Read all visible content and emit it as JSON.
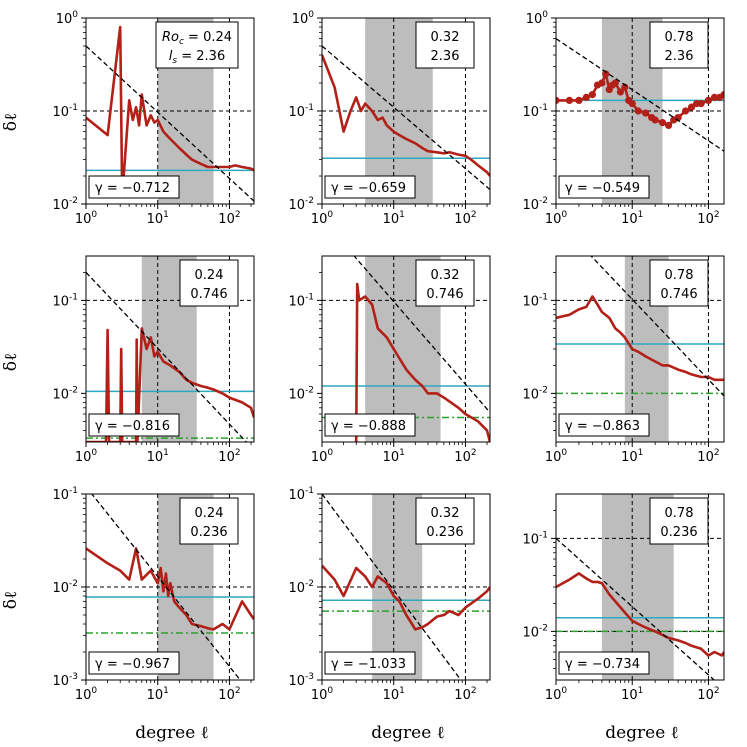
{
  "figure": {
    "ylabel": "δℓ",
    "xlabel": "degree ℓ",
    "roc_symbol": "Roc",
    "ls_symbol": "ls",
    "gamma_symbol": "γ"
  },
  "colors": {
    "spectrum": "#b22018",
    "fit": "#000000",
    "cyan": "#2ea8bf",
    "green": "#2ca02c",
    "band": "#bdbdbd"
  },
  "chart_data": [
    {
      "type": "line",
      "row": 0,
      "col": 0,
      "roc": "0.24",
      "ls": "2.36",
      "gamma": "γ = −0.712",
      "full_label": true,
      "xlim": [
        1,
        220
      ],
      "ylim": [
        0.01,
        1
      ],
      "band": [
        10,
        60
      ],
      "fit": {
        "a": 0.5,
        "slope": -0.712
      },
      "cyan": 0.023,
      "green": null,
      "dots": false,
      "x": [
        1,
        2,
        3,
        3.2,
        4,
        4.5,
        5,
        5.5,
        6,
        6.5,
        7,
        8,
        9,
        10,
        12,
        15,
        20,
        25,
        30,
        40,
        50,
        60,
        80,
        100,
        120,
        150,
        200,
        220
      ],
      "y": [
        0.085,
        0.055,
        0.8,
        0.012,
        0.13,
        0.08,
        0.11,
        0.07,
        0.15,
        0.1,
        0.07,
        0.09,
        0.075,
        0.08,
        0.06,
        0.05,
        0.04,
        0.034,
        0.03,
        0.027,
        0.025,
        0.025,
        0.025,
        0.025,
        0.026,
        0.025,
        0.024,
        0.023
      ]
    },
    {
      "type": "line",
      "row": 0,
      "col": 1,
      "roc": "0.32",
      "ls": "2.36",
      "gamma": "γ = −0.659",
      "full_label": false,
      "xlim": [
        1,
        220
      ],
      "ylim": [
        0.01,
        1
      ],
      "band": [
        4,
        35
      ],
      "fit": {
        "a": 0.5,
        "slope": -0.659
      },
      "cyan": 0.031,
      "green": null,
      "dots": false,
      "x": [
        1,
        1.5,
        2,
        2.5,
        3,
        3.5,
        4,
        5,
        6,
        7,
        8,
        10,
        12,
        15,
        20,
        25,
        30,
        40,
        50,
        60,
        80,
        100,
        120,
        150,
        200,
        220
      ],
      "y": [
        0.4,
        0.18,
        0.06,
        0.1,
        0.14,
        0.1,
        0.12,
        0.1,
        0.08,
        0.085,
        0.07,
        0.06,
        0.055,
        0.05,
        0.045,
        0.04,
        0.037,
        0.036,
        0.035,
        0.036,
        0.034,
        0.033,
        0.03,
        0.026,
        0.022,
        0.02
      ]
    },
    {
      "type": "scatter",
      "row": 0,
      "col": 2,
      "roc": "0.78",
      "ls": "2.36",
      "gamma": "γ = −0.549",
      "full_label": false,
      "xlim": [
        1,
        160
      ],
      "ylim": [
        0.01,
        1
      ],
      "band": [
        4,
        25
      ],
      "fit": {
        "a": 0.6,
        "slope": -0.549
      },
      "cyan": 0.13,
      "green": null,
      "dots": true,
      "x": [
        1,
        1.5,
        2,
        2.5,
        3,
        3.5,
        4,
        4.5,
        5,
        5.5,
        6,
        7,
        8,
        9,
        10,
        12,
        15,
        18,
        20,
        25,
        30,
        35,
        40,
        50,
        60,
        70,
        80,
        100,
        120,
        140,
        160
      ],
      "y": [
        0.13,
        0.13,
        0.13,
        0.14,
        0.15,
        0.19,
        0.2,
        0.25,
        0.17,
        0.19,
        0.2,
        0.16,
        0.18,
        0.13,
        0.12,
        0.1,
        0.095,
        0.085,
        0.08,
        0.075,
        0.07,
        0.08,
        0.085,
        0.1,
        0.11,
        0.12,
        0.12,
        0.13,
        0.14,
        0.14,
        0.15
      ]
    },
    {
      "type": "line",
      "row": 1,
      "col": 0,
      "roc": "0.24",
      "ls": "0.746",
      "gamma": "γ = −0.816",
      "full_label": false,
      "xlim": [
        1,
        220
      ],
      "ylim": [
        0.003,
        0.3
      ],
      "band": [
        6,
        35
      ],
      "fit": {
        "a": 0.2,
        "slope": -0.816
      },
      "cyan": 0.0105,
      "green": 0.0033,
      "dots": false,
      "x": [
        1,
        1.9,
        2,
        2.1,
        3,
        3.1,
        3.2,
        4,
        5,
        5.1,
        5.2,
        6,
        7,
        8,
        9,
        10,
        12,
        15,
        20,
        25,
        30,
        40,
        50,
        60,
        80,
        100,
        150,
        200,
        220
      ],
      "y": [
        0.003,
        0.003,
        0.048,
        0.003,
        0.003,
        0.03,
        0.003,
        0.003,
        0.003,
        0.038,
        0.003,
        0.05,
        0.03,
        0.04,
        0.025,
        0.028,
        0.022,
        0.02,
        0.017,
        0.014,
        0.013,
        0.012,
        0.0115,
        0.011,
        0.01,
        0.009,
        0.008,
        0.007,
        0.0055
      ]
    },
    {
      "type": "line",
      "row": 1,
      "col": 1,
      "roc": "0.32",
      "ls": "0.746",
      "gamma": "γ = −0.888",
      "full_label": false,
      "xlim": [
        1,
        220
      ],
      "ylim": [
        0.003,
        0.3
      ],
      "band": [
        4,
        45
      ],
      "fit": {
        "a": 0.75,
        "slope": -0.888
      },
      "cyan": 0.012,
      "green": 0.0055,
      "dots": false,
      "x": [
        3,
        3.1,
        3.3,
        4,
        5,
        6,
        8,
        10,
        15,
        20,
        25,
        30,
        40,
        50,
        80,
        100,
        150,
        200,
        220
      ],
      "y": [
        0.003,
        0.15,
        0.1,
        0.11,
        0.09,
        0.05,
        0.04,
        0.03,
        0.018,
        0.014,
        0.012,
        0.01,
        0.01,
        0.009,
        0.007,
        0.006,
        0.005,
        0.004,
        0.003
      ]
    },
    {
      "type": "line",
      "row": 1,
      "col": 2,
      "roc": "0.78",
      "ls": "0.746",
      "gamma": "γ = −0.863",
      "full_label": false,
      "xlim": [
        1,
        160
      ],
      "ylim": [
        0.003,
        0.3
      ],
      "band": [
        8,
        30
      ],
      "fit": {
        "a": 0.75,
        "slope": -0.863
      },
      "cyan": 0.034,
      "green": 0.01,
      "dots": false,
      "x": [
        1,
        1.5,
        2,
        2.5,
        3,
        3.5,
        4,
        5,
        6,
        7,
        8,
        10,
        12,
        15,
        20,
        25,
        30,
        40,
        50,
        60,
        80,
        100,
        120,
        160
      ],
      "y": [
        0.065,
        0.07,
        0.08,
        0.085,
        0.11,
        0.09,
        0.075,
        0.065,
        0.05,
        0.045,
        0.04,
        0.03,
        0.028,
        0.025,
        0.022,
        0.02,
        0.02,
        0.018,
        0.017,
        0.016,
        0.015,
        0.015,
        0.014,
        0.014
      ]
    },
    {
      "type": "line",
      "row": 2,
      "col": 0,
      "roc": "0.24",
      "ls": "0.236",
      "gamma": "γ = −0.967",
      "full_label": false,
      "xlim": [
        1,
        220
      ],
      "ylim": [
        0.001,
        0.1
      ],
      "band": [
        10,
        60
      ],
      "fit": {
        "a": 0.12,
        "slope": -0.967
      },
      "cyan": 0.0078,
      "green": 0.0032,
      "dots": false,
      "x": [
        1,
        2,
        3,
        4,
        5,
        6,
        8,
        10,
        11,
        12,
        13,
        14,
        15,
        17,
        20,
        25,
        30,
        40,
        50,
        60,
        80,
        100,
        150,
        200,
        220
      ],
      "y": [
        0.026,
        0.018,
        0.015,
        0.012,
        0.026,
        0.012,
        0.015,
        0.011,
        0.016,
        0.009,
        0.014,
        0.008,
        0.011,
        0.007,
        0.006,
        0.005,
        0.004,
        0.0038,
        0.0036,
        0.0035,
        0.004,
        0.0035,
        0.007,
        0.005,
        0.0045
      ]
    },
    {
      "type": "line",
      "row": 2,
      "col": 1,
      "roc": "0.32",
      "ls": "0.236",
      "gamma": "γ = −1.033",
      "full_label": false,
      "xlim": [
        1,
        220
      ],
      "ylim": [
        0.001,
        0.1
      ],
      "band": [
        5,
        25
      ],
      "fit": {
        "a": 0.1,
        "slope": -1.033
      },
      "cyan": 0.0072,
      "green": 0.0055,
      "dots": false,
      "x": [
        1,
        1.5,
        2,
        3,
        4,
        5,
        6,
        8,
        10,
        12,
        15,
        18,
        20,
        25,
        30,
        40,
        50,
        60,
        80,
        100,
        150,
        200,
        220
      ],
      "y": [
        0.017,
        0.012,
        0.008,
        0.016,
        0.013,
        0.01,
        0.013,
        0.011,
        0.008,
        0.007,
        0.005,
        0.004,
        0.0035,
        0.0037,
        0.004,
        0.0048,
        0.005,
        0.0055,
        0.005,
        0.006,
        0.0075,
        0.009,
        0.01
      ]
    },
    {
      "type": "line",
      "row": 2,
      "col": 2,
      "roc": "0.78",
      "ls": "0.236",
      "gamma": "γ = −0.734",
      "full_label": false,
      "xlim": [
        1,
        160
      ],
      "ylim": [
        0.003,
        0.3
      ],
      "band": [
        4,
        35
      ],
      "fit": {
        "a": 0.1,
        "slope": -0.734
      },
      "cyan": 0.014,
      "green": 0.01,
      "dots": false,
      "x": [
        1,
        1.5,
        2,
        2.5,
        3,
        3.5,
        4,
        5,
        6,
        8,
        10,
        12,
        15,
        20,
        30,
        40,
        50,
        60,
        80,
        100,
        120,
        150,
        160
      ],
      "y": [
        0.03,
        0.036,
        0.042,
        0.037,
        0.034,
        0.034,
        0.033,
        0.025,
        0.021,
        0.016,
        0.013,
        0.012,
        0.011,
        0.01,
        0.0085,
        0.008,
        0.0075,
        0.007,
        0.0065,
        0.0055,
        0.006,
        0.0055,
        0.006
      ]
    }
  ]
}
